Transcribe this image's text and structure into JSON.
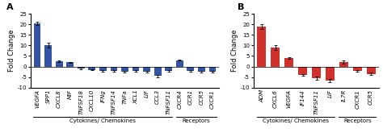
{
  "chart_data": [
    {
      "type": "bar",
      "title": "A",
      "categories": [
        "VEGFA",
        "SPP1",
        "CXCL8",
        "MIF",
        "TNFSF18",
        "CXCL10",
        "IFNg",
        "TNFSF14",
        "TNFa",
        "XCL1",
        "LIF",
        "CCL3",
        "TNFSF11",
        "CXCR4",
        "CCR1",
        "CCR5",
        "CXCR1"
      ],
      "values": [
        20.5,
        10.0,
        2.5,
        2.0,
        -1.0,
        -1.5,
        -2.0,
        -2.0,
        -2.5,
        -2.0,
        -2.5,
        -4.5,
        -2.0,
        3.0,
        -2.0,
        -2.5,
        -2.5
      ],
      "errors": [
        0.8,
        1.2,
        0.3,
        0.3,
        0.3,
        0.3,
        0.4,
        0.3,
        0.3,
        0.3,
        0.4,
        0.5,
        0.3,
        0.3,
        0.3,
        0.3,
        0.3
      ],
      "groups": [
        {
          "label": "Cytokines/ Chemokines",
          "count": 13
        },
        {
          "label": "Receptors",
          "count": 4
        }
      ],
      "color": "#3454a4",
      "ylim": [
        -10,
        25
      ],
      "yticks": [
        -10,
        -5,
        0,
        5,
        10,
        15,
        20,
        25
      ],
      "ylabel": "Fold Change"
    },
    {
      "type": "bar",
      "title": "B",
      "categories": [
        "ADM",
        "CXCL6",
        "VEGFA",
        "IF144",
        "TNFSF11",
        "LIF",
        "IL7R",
        "CXCR1",
        "CCR5"
      ],
      "values": [
        19.0,
        9.0,
        4.0,
        -4.0,
        -5.5,
        -6.5,
        2.0,
        -2.0,
        -3.5
      ],
      "errors": [
        1.2,
        1.0,
        0.5,
        0.5,
        0.7,
        0.8,
        0.8,
        0.4,
        0.5
      ],
      "groups": [
        {
          "label": "Cytokines/ Chemokines",
          "count": 6
        },
        {
          "label": "Receptors",
          "count": 3
        }
      ],
      "color": "#d0312d",
      "ylim": [
        -10,
        25
      ],
      "yticks": [
        -10,
        -5,
        0,
        5,
        10,
        15,
        20,
        25
      ],
      "ylabel": "Fold Change"
    }
  ]
}
